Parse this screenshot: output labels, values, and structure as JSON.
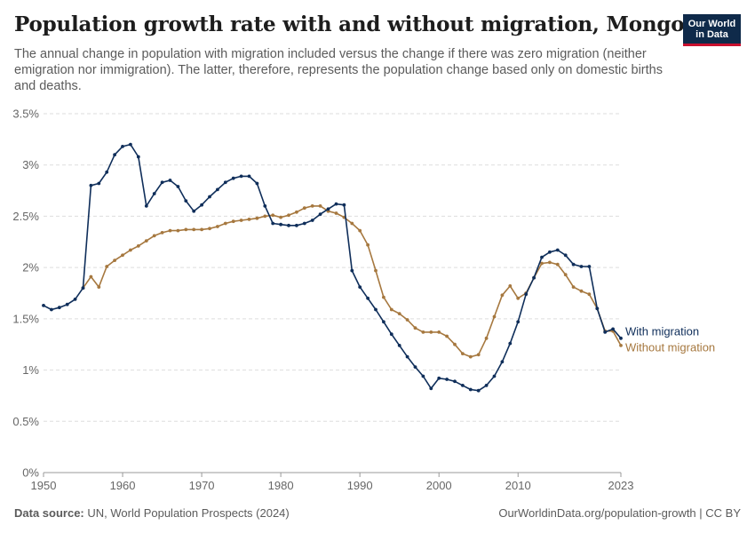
{
  "title": "Population growth rate with and without migration, Mongolia",
  "subtitle": "The annual change in population with migration included versus the change if there was zero migration (neither emigration nor immigration). The latter, therefore, represents the population change based only on domestic births and deaths.",
  "logo": {
    "line1": "Our World",
    "line2": "in Data"
  },
  "footer": {
    "source_label": "Data source:",
    "source_text": "UN, World Population Prospects (2024)",
    "url": "OurWorldinData.org/population-growth | CC BY"
  },
  "colors": {
    "with_migration": "#0f2e5a",
    "without_migration": "#a6783f",
    "grid": "#dddddd"
  },
  "chart_data": {
    "type": "line",
    "x_tick_labels": [
      "1950",
      "1960",
      "1970",
      "1980",
      "1990",
      "2000",
      "2010",
      "2023"
    ],
    "x_ticks": [
      1950,
      1960,
      1970,
      1980,
      1990,
      2000,
      2010,
      2023
    ],
    "y_tick_labels": [
      "0%",
      "0.5%",
      "1%",
      "1.5%",
      "2%",
      "2.5%",
      "3%",
      "3.5%"
    ],
    "y_ticks": [
      0,
      0.5,
      1,
      1.5,
      2,
      2.5,
      3,
      3.5
    ],
    "xlim": [
      1950,
      2023
    ],
    "ylim": [
      0,
      3.5
    ],
    "grid": "horizontal dashed",
    "legend": "line end labels",
    "series": [
      {
        "name": "With migration",
        "x": [
          1950,
          1951,
          1952,
          1953,
          1954,
          1955,
          1956,
          1957,
          1958,
          1959,
          1960,
          1961,
          1962,
          1963,
          1964,
          1965,
          1966,
          1967,
          1968,
          1969,
          1970,
          1971,
          1972,
          1973,
          1974,
          1975,
          1976,
          1977,
          1978,
          1979,
          1980,
          1981,
          1982,
          1983,
          1984,
          1985,
          1986,
          1987,
          1988,
          1989,
          1990,
          1991,
          1992,
          1993,
          1994,
          1995,
          1996,
          1997,
          1998,
          1999,
          2000,
          2001,
          2002,
          2003,
          2004,
          2005,
          2006,
          2007,
          2008,
          2009,
          2010,
          2011,
          2012,
          2013,
          2014,
          2015,
          2016,
          2017,
          2018,
          2019,
          2020,
          2021,
          2022,
          2023
        ],
        "values": [
          1.63,
          1.59,
          1.61,
          1.64,
          1.69,
          1.8,
          2.8,
          2.82,
          2.93,
          3.1,
          3.18,
          3.2,
          3.08,
          2.6,
          2.72,
          2.83,
          2.85,
          2.79,
          2.65,
          2.55,
          2.61,
          2.69,
          2.76,
          2.83,
          2.87,
          2.89,
          2.89,
          2.82,
          2.6,
          2.43,
          2.42,
          2.41,
          2.41,
          2.43,
          2.46,
          2.52,
          2.57,
          2.62,
          2.61,
          1.97,
          1.81,
          1.7,
          1.59,
          1.47,
          1.35,
          1.24,
          1.13,
          1.03,
          0.94,
          0.82,
          0.92,
          0.91,
          0.89,
          0.85,
          0.81,
          0.8,
          0.85,
          0.94,
          1.08,
          1.26,
          1.47,
          1.74,
          1.9,
          2.1,
          2.15,
          2.17,
          2.12,
          2.03,
          2.01,
          2.01,
          1.6,
          1.37,
          1.4,
          1.31
        ]
      },
      {
        "name": "Without migration",
        "x": [
          1955,
          1956,
          1957,
          1958,
          1959,
          1960,
          1961,
          1962,
          1963,
          1964,
          1965,
          1966,
          1967,
          1968,
          1969,
          1970,
          1971,
          1972,
          1973,
          1974,
          1975,
          1976,
          1977,
          1978,
          1979,
          1980,
          1981,
          1982,
          1983,
          1984,
          1985,
          1986,
          1987,
          1988,
          1989,
          1990,
          1991,
          1992,
          1993,
          1994,
          1995,
          1996,
          1997,
          1998,
          1999,
          2000,
          2001,
          2002,
          2003,
          2004,
          2005,
          2006,
          2007,
          2008,
          2009,
          2010,
          2011,
          2012,
          2013,
          2014,
          2015,
          2016,
          2017,
          2018,
          2019,
          2020,
          2021,
          2022,
          2023
        ],
        "values": [
          1.8,
          1.91,
          1.81,
          2.01,
          2.07,
          2.12,
          2.17,
          2.21,
          2.26,
          2.31,
          2.34,
          2.36,
          2.36,
          2.37,
          2.37,
          2.37,
          2.38,
          2.4,
          2.43,
          2.45,
          2.46,
          2.47,
          2.48,
          2.5,
          2.51,
          2.49,
          2.51,
          2.54,
          2.58,
          2.6,
          2.6,
          2.55,
          2.53,
          2.49,
          2.43,
          2.36,
          2.22,
          1.97,
          1.71,
          1.59,
          1.55,
          1.49,
          1.41,
          1.37,
          1.37,
          1.37,
          1.33,
          1.25,
          1.16,
          1.13,
          1.15,
          1.31,
          1.52,
          1.73,
          1.82,
          1.7,
          1.75,
          1.9,
          2.04,
          2.05,
          2.03,
          1.93,
          1.81,
          1.77,
          1.74,
          1.6,
          1.38,
          1.38,
          1.24
        ]
      }
    ]
  }
}
